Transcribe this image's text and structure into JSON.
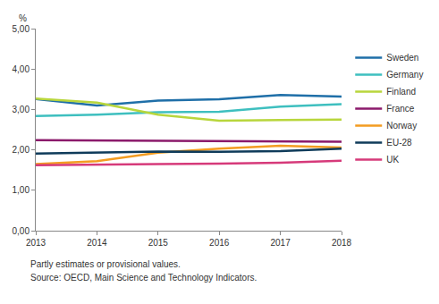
{
  "chart_data": {
    "type": "line",
    "ylabel": "%",
    "notes": [
      "Partly estimates or provisional values.",
      "Source: OECD, Main Science and Technology Indicators."
    ],
    "x": [
      2013,
      2014,
      2015,
      2016,
      2017,
      2018
    ],
    "xlim": [
      2013,
      2018
    ],
    "xticks": [
      2013,
      2014,
      2015,
      2016,
      2017,
      2018
    ],
    "ylim": [
      0,
      5
    ],
    "yticks": [
      {
        "value": 0,
        "label": "0,00"
      },
      {
        "value": 1,
        "label": "1,00"
      },
      {
        "value": 2,
        "label": "2,00"
      },
      {
        "value": 3,
        "label": "3,00"
      },
      {
        "value": 4,
        "label": "4,00"
      },
      {
        "value": 5,
        "label": "5,00"
      }
    ],
    "grid": false,
    "legend": "right",
    "series": [
      {
        "name": "Sweden",
        "color": "#1f6fa8",
        "values": [
          3.26,
          3.1,
          3.22,
          3.25,
          3.36,
          3.32
        ]
      },
      {
        "name": "Germany",
        "color": "#3ebfbf",
        "values": [
          2.84,
          2.87,
          2.93,
          2.94,
          3.07,
          3.13
        ]
      },
      {
        "name": "Finland",
        "color": "#b8d63c",
        "values": [
          3.27,
          3.17,
          2.87,
          2.72,
          2.74,
          2.75
        ]
      },
      {
        "name": "France",
        "color": "#8b1a6b",
        "values": [
          2.24,
          2.23,
          2.23,
          2.22,
          2.21,
          2.2
        ]
      },
      {
        "name": "Norway",
        "color": "#f39c21",
        "values": [
          1.65,
          1.72,
          1.93,
          2.03,
          2.1,
          2.06
        ]
      },
      {
        "name": "EU-28",
        "color": "#0f3b5a",
        "values": [
          1.91,
          1.93,
          1.96,
          1.95,
          1.97,
          2.03
        ]
      },
      {
        "name": "UK",
        "color": "#d63a7a",
        "values": [
          1.62,
          1.64,
          1.65,
          1.66,
          1.68,
          1.73
        ]
      }
    ]
  }
}
